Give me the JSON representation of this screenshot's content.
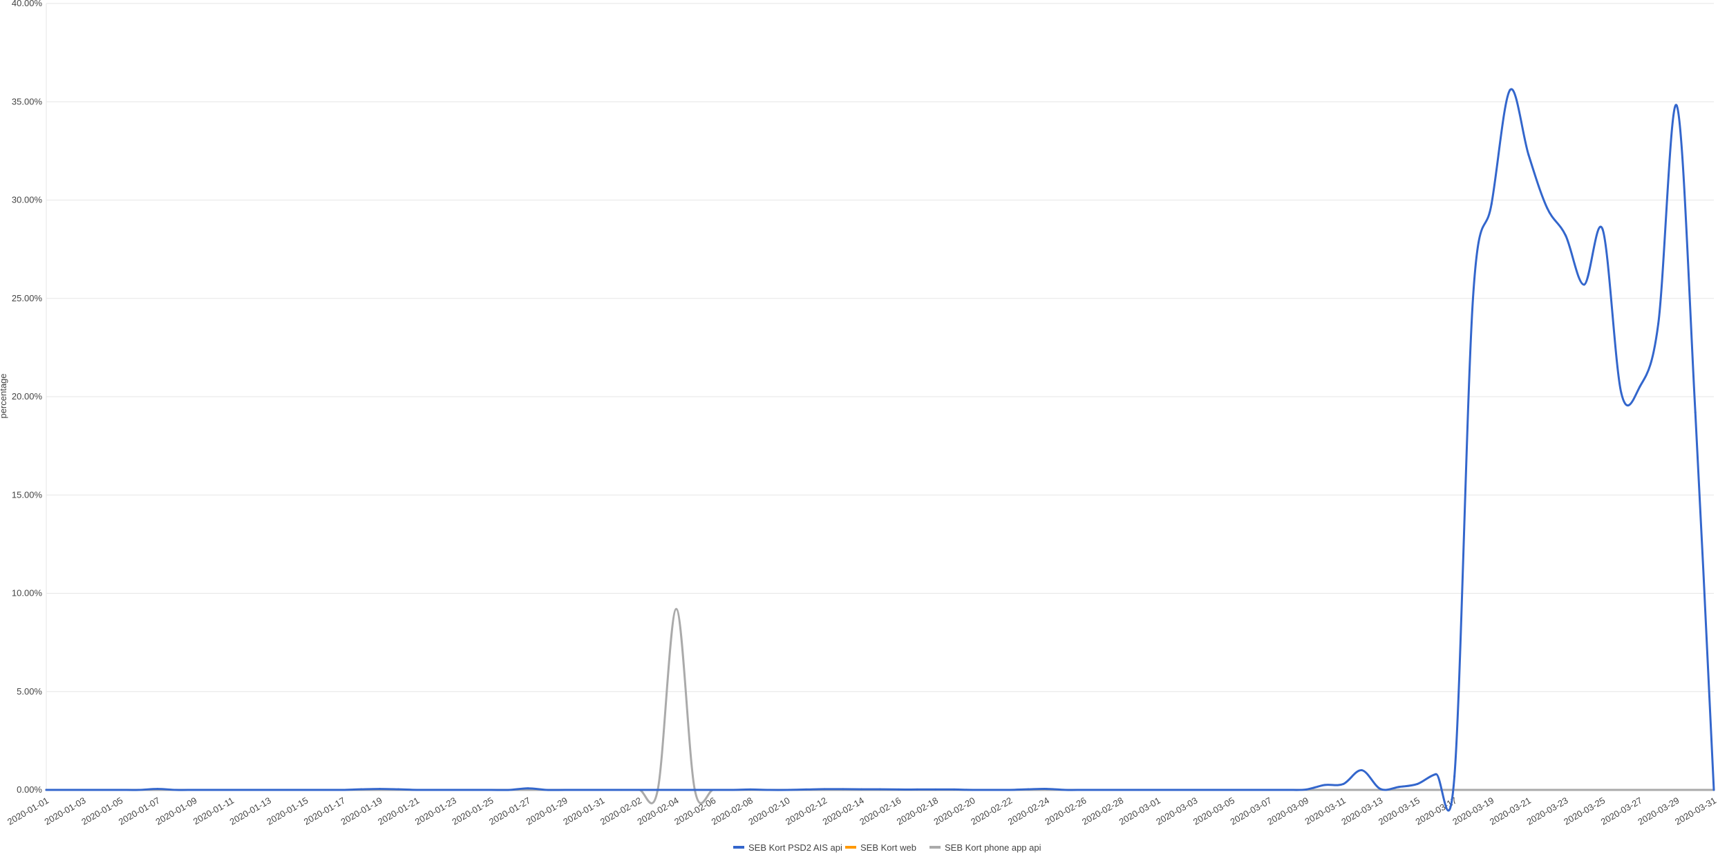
{
  "chart_data": {
    "type": "line",
    "ylabel": "percentage",
    "ylim": [
      0,
      40
    ],
    "yticks": [
      "0.00%",
      "5.00%",
      "10.00%",
      "15.00%",
      "20.00%",
      "25.00%",
      "30.00%",
      "35.00%",
      "40.00%"
    ],
    "ytick_values": [
      0,
      5,
      10,
      15,
      20,
      25,
      30,
      35,
      40
    ],
    "x": [
      "2020-01-01",
      "2020-01-02",
      "2020-01-03",
      "2020-01-04",
      "2020-01-05",
      "2020-01-06",
      "2020-01-07",
      "2020-01-08",
      "2020-01-09",
      "2020-01-10",
      "2020-01-11",
      "2020-01-12",
      "2020-01-13",
      "2020-01-14",
      "2020-01-15",
      "2020-01-16",
      "2020-01-17",
      "2020-01-18",
      "2020-01-19",
      "2020-01-20",
      "2020-01-21",
      "2020-01-22",
      "2020-01-23",
      "2020-01-24",
      "2020-01-25",
      "2020-01-26",
      "2020-01-27",
      "2020-01-28",
      "2020-01-29",
      "2020-01-30",
      "2020-01-31",
      "2020-02-01",
      "2020-02-02",
      "2020-02-03",
      "2020-02-04",
      "2020-02-05",
      "2020-02-06",
      "2020-02-07",
      "2020-02-08",
      "2020-02-09",
      "2020-02-10",
      "2020-02-11",
      "2020-02-12",
      "2020-02-13",
      "2020-02-14",
      "2020-02-15",
      "2020-02-16",
      "2020-02-17",
      "2020-02-18",
      "2020-02-19",
      "2020-02-20",
      "2020-02-21",
      "2020-02-22",
      "2020-02-23",
      "2020-02-24",
      "2020-02-25",
      "2020-02-26",
      "2020-02-27",
      "2020-02-28",
      "2020-02-29",
      "2020-03-01",
      "2020-03-02",
      "2020-03-03",
      "2020-03-04",
      "2020-03-05",
      "2020-03-06",
      "2020-03-07",
      "2020-03-08",
      "2020-03-09",
      "2020-03-10",
      "2020-03-11",
      "2020-03-12",
      "2020-03-13",
      "2020-03-14",
      "2020-03-15",
      "2020-03-16",
      "2020-03-17",
      "2020-03-18",
      "2020-03-19",
      "2020-03-20",
      "2020-03-21",
      "2020-03-22",
      "2020-03-23",
      "2020-03-24",
      "2020-03-25",
      "2020-03-26",
      "2020-03-27",
      "2020-03-28",
      "2020-03-29",
      "2020-03-30",
      "2020-03-31"
    ],
    "xtick_labels": [
      "2020-01-01",
      "2020-01-03",
      "2020-01-05",
      "2020-01-07",
      "2020-01-09",
      "2020-01-11",
      "2020-01-13",
      "2020-01-15",
      "2020-01-17",
      "2020-01-19",
      "2020-01-21",
      "2020-01-23",
      "2020-01-25",
      "2020-01-27",
      "2020-01-29",
      "2020-01-31",
      "2020-02-02",
      "2020-02-04",
      "2020-02-06",
      "2020-02-08",
      "2020-02-10",
      "2020-02-12",
      "2020-02-14",
      "2020-02-16",
      "2020-02-18",
      "2020-02-20",
      "2020-02-22",
      "2020-02-24",
      "2020-02-26",
      "2020-02-28",
      "2020-03-01",
      "2020-03-03",
      "2020-03-05",
      "2020-03-07",
      "2020-03-09",
      "2020-03-11",
      "2020-03-13",
      "2020-03-15",
      "2020-03-17",
      "2020-03-19",
      "2020-03-21",
      "2020-03-23",
      "2020-03-25",
      "2020-03-27",
      "2020-03-29",
      "2020-03-31"
    ],
    "grid": true,
    "legend_position": "bottom",
    "series": [
      {
        "name": "SEB Kort PSD2 AIS api",
        "color": "#3366cc",
        "values": [
          0,
          0,
          0,
          0,
          0,
          0,
          0.05,
          0,
          0,
          0,
          0,
          0,
          0,
          0,
          0,
          0,
          0,
          0.03,
          0.05,
          0.03,
          0,
          0,
          0,
          0,
          0,
          0,
          0.08,
          0,
          0,
          0,
          0,
          0,
          0,
          0,
          0,
          0,
          0,
          0,
          0.02,
          0,
          0,
          0.02,
          0.04,
          0.04,
          0.03,
          0.03,
          0.02,
          0.02,
          0.02,
          0.02,
          0,
          0,
          0,
          0.03,
          0.05,
          0,
          0,
          0,
          0,
          0,
          0,
          0,
          0,
          0,
          0,
          0,
          0,
          0,
          0.02,
          0.25,
          0.3,
          1.0,
          0.05,
          0.15,
          0.3,
          0.8,
          0.7,
          25.0,
          29.8,
          35.6,
          32.3,
          29.6,
          28.2,
          25.7,
          28.5,
          20.2,
          20.5,
          23.7,
          34.8,
          19.2,
          0
        ]
      },
      {
        "name": "SEB Kort web",
        "color": "#ff9900",
        "values": [
          0,
          0,
          0,
          0,
          0,
          0,
          0,
          0,
          0,
          0,
          0,
          0,
          0,
          0,
          0,
          0,
          0,
          0,
          0,
          0,
          0,
          0,
          0,
          0,
          0,
          0,
          0,
          0,
          0,
          0,
          0,
          0,
          0,
          0,
          0,
          0,
          0,
          0,
          0,
          0,
          0,
          0,
          0,
          0,
          0,
          0,
          0,
          0,
          0,
          0,
          0,
          0,
          0,
          0,
          0,
          0,
          0,
          0,
          0,
          0,
          0,
          0,
          0,
          0,
          0,
          0,
          0,
          0,
          0,
          0,
          0,
          0,
          0,
          0,
          0,
          0,
          0,
          0,
          0,
          0,
          0,
          0,
          0,
          0,
          0,
          0,
          0,
          0,
          0,
          0,
          0
        ]
      },
      {
        "name": "SEB Kort phone app api",
        "color": "#aaaaaa",
        "values": [
          0,
          0,
          0,
          0,
          0,
          0,
          0,
          0,
          0,
          0,
          0,
          0,
          0,
          0,
          0,
          0,
          0,
          0,
          0,
          0,
          0,
          0,
          0,
          0,
          0,
          0,
          0,
          0,
          0,
          0,
          0,
          0,
          0,
          0,
          9.2,
          0,
          0,
          0,
          0,
          0,
          0,
          0,
          0,
          0,
          0,
          0,
          0,
          0,
          0,
          0,
          0,
          0,
          0,
          0,
          0,
          0,
          0,
          0,
          0,
          0,
          0,
          0,
          0,
          0,
          0,
          0,
          0,
          0,
          0,
          0,
          0,
          0,
          0,
          0,
          0,
          0,
          0,
          0,
          0,
          0,
          0,
          0,
          0,
          0,
          0,
          0,
          0,
          0,
          0,
          0,
          0
        ]
      }
    ]
  }
}
